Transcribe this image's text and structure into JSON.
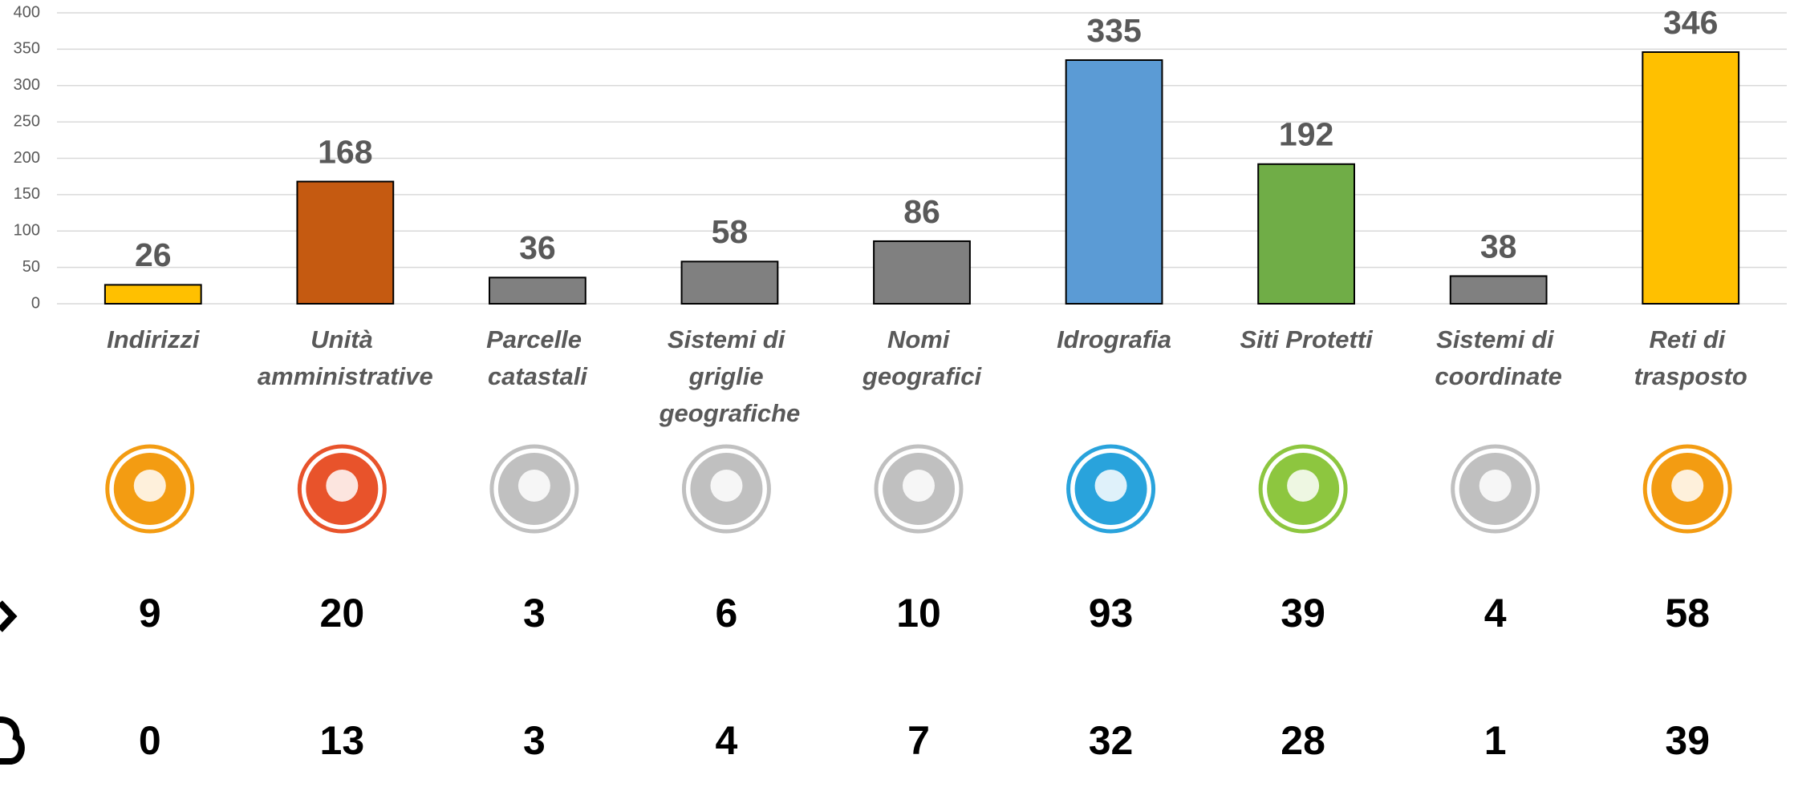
{
  "chart_data": {
    "type": "bar",
    "categories": [
      "Indirizzi",
      "Unità amministrative",
      "Parcelle catastali",
      "Sistemi di griglie geografiche",
      "Nomi geografici",
      "Idrografia",
      "Siti Protetti",
      "Sistemi di coordinate",
      "Reti di trasposto"
    ],
    "values": [
      26,
      168,
      36,
      58,
      86,
      335,
      192,
      38,
      346
    ],
    "colors": [
      "#ffc000",
      "#c55a11",
      "#808080",
      "#808080",
      "#808080",
      "#5b9bd5",
      "#70ad47",
      "#808080",
      "#ffc000"
    ],
    "ylim": [
      0,
      400
    ],
    "yticks": [
      0,
      50,
      100,
      150,
      200,
      250,
      300,
      350,
      400
    ],
    "grid": true
  },
  "rows": [
    {
      "values": [
        9,
        20,
        3,
        6,
        10,
        93,
        39,
        4,
        58
      ]
    },
    {
      "values": [
        0,
        13,
        3,
        4,
        7,
        32,
        28,
        1,
        39
      ]
    }
  ]
}
